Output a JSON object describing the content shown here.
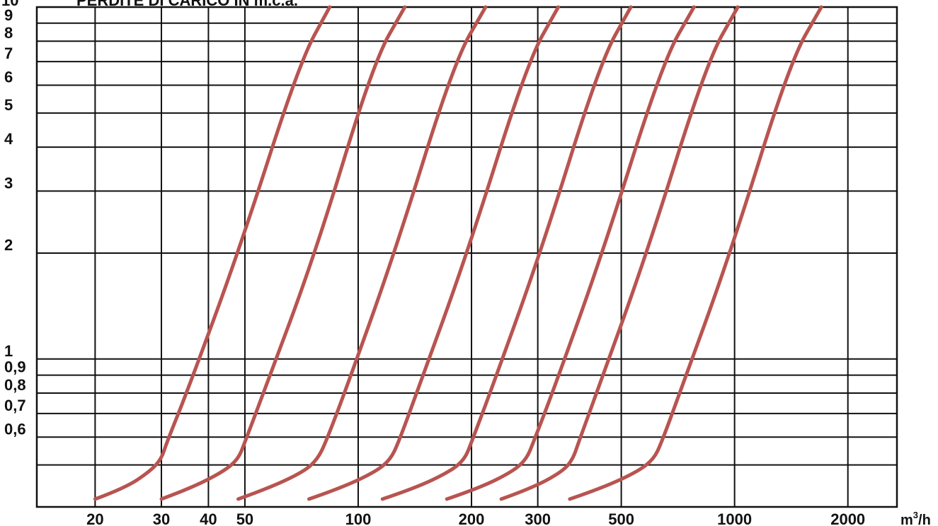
{
  "chart_data": {
    "type": "line",
    "title": "PERDITE DI CARICO IN m.c.a.",
    "xlabel": "",
    "ylabel": "",
    "x_unit": "m³/h",
    "x_scale": "log",
    "y_scale": "log",
    "xlim": [
      14,
      2700
    ],
    "ylim": [
      0.38,
      10
    ],
    "x_ticks": [
      {
        "value": 20,
        "label": "20"
      },
      {
        "value": 30,
        "label": "30"
      },
      {
        "value": 40,
        "label": "40"
      },
      {
        "value": 50,
        "label": "50"
      },
      {
        "value": 100,
        "label": "100"
      },
      {
        "value": 200,
        "label": "200"
      },
      {
        "value": 300,
        "label": "300"
      },
      {
        "value": 500,
        "label": "500"
      },
      {
        "value": 1000,
        "label": "1000"
      },
      {
        "value": 2000,
        "label": "2000"
      }
    ],
    "y_ticks": [
      {
        "value": 0.5,
        "label": ""
      },
      {
        "value": 0.6,
        "label": "0,6"
      },
      {
        "value": 0.7,
        "label": "0,7"
      },
      {
        "value": 0.8,
        "label": "0,8"
      },
      {
        "value": 0.9,
        "label": "0,9"
      },
      {
        "value": 1,
        "label": "1"
      },
      {
        "value": 2,
        "label": "2"
      },
      {
        "value": 3,
        "label": "3"
      },
      {
        "value": 4,
        "label": "4"
      },
      {
        "value": 5,
        "label": "5"
      },
      {
        "value": 6,
        "label": "6"
      },
      {
        "value": 7,
        "label": "7"
      },
      {
        "value": 8,
        "label": "8"
      },
      {
        "value": 9,
        "label": "9"
      },
      {
        "value": 10,
        "label": "10"
      }
    ],
    "grid": true,
    "series_color": "#b85450",
    "series": [
      {
        "x": [
          20,
          24,
          28,
          30,
          31,
          35,
          48,
          70,
          84
        ],
        "y": [
          0.4,
          0.43,
          0.48,
          0.52,
          0.58,
          0.8,
          2,
          7,
          10
        ]
      },
      {
        "x": [
          30,
          36,
          44,
          48,
          50,
          56,
          77,
          110,
          133
        ],
        "y": [
          0.4,
          0.43,
          0.48,
          0.52,
          0.58,
          0.8,
          2,
          7,
          10
        ]
      },
      {
        "x": [
          48,
          58,
          72,
          78,
          82,
          92,
          125,
          180,
          218
        ],
        "y": [
          0.4,
          0.43,
          0.48,
          0.52,
          0.58,
          0.8,
          2,
          7,
          10
        ]
      },
      {
        "x": [
          74,
          90,
          112,
          122,
          128,
          143,
          195,
          282,
          340
        ],
        "y": [
          0.4,
          0.43,
          0.48,
          0.52,
          0.58,
          0.8,
          2,
          7,
          10
        ]
      },
      {
        "x": [
          116,
          142,
          176,
          192,
          200,
          224,
          305,
          440,
          530
        ],
        "y": [
          0.4,
          0.43,
          0.48,
          0.52,
          0.58,
          0.8,
          2,
          7,
          10
        ]
      },
      {
        "x": [
          172,
          210,
          258,
          280,
          292,
          328,
          446,
          645,
          780
        ],
        "y": [
          0.4,
          0.43,
          0.48,
          0.52,
          0.58,
          0.8,
          2,
          7,
          10
        ]
      },
      {
        "x": [
          240,
          290,
          350,
          372,
          385,
          430,
          585,
          845,
          1020
        ],
        "y": [
          0.4,
          0.43,
          0.48,
          0.52,
          0.58,
          0.8,
          2,
          7,
          10
        ]
      },
      {
        "x": [
          365,
          445,
          555,
          610,
          640,
          715,
          975,
          1405,
          1700
        ],
        "y": [
          0.4,
          0.43,
          0.48,
          0.52,
          0.58,
          0.8,
          2,
          7,
          10
        ]
      }
    ]
  }
}
